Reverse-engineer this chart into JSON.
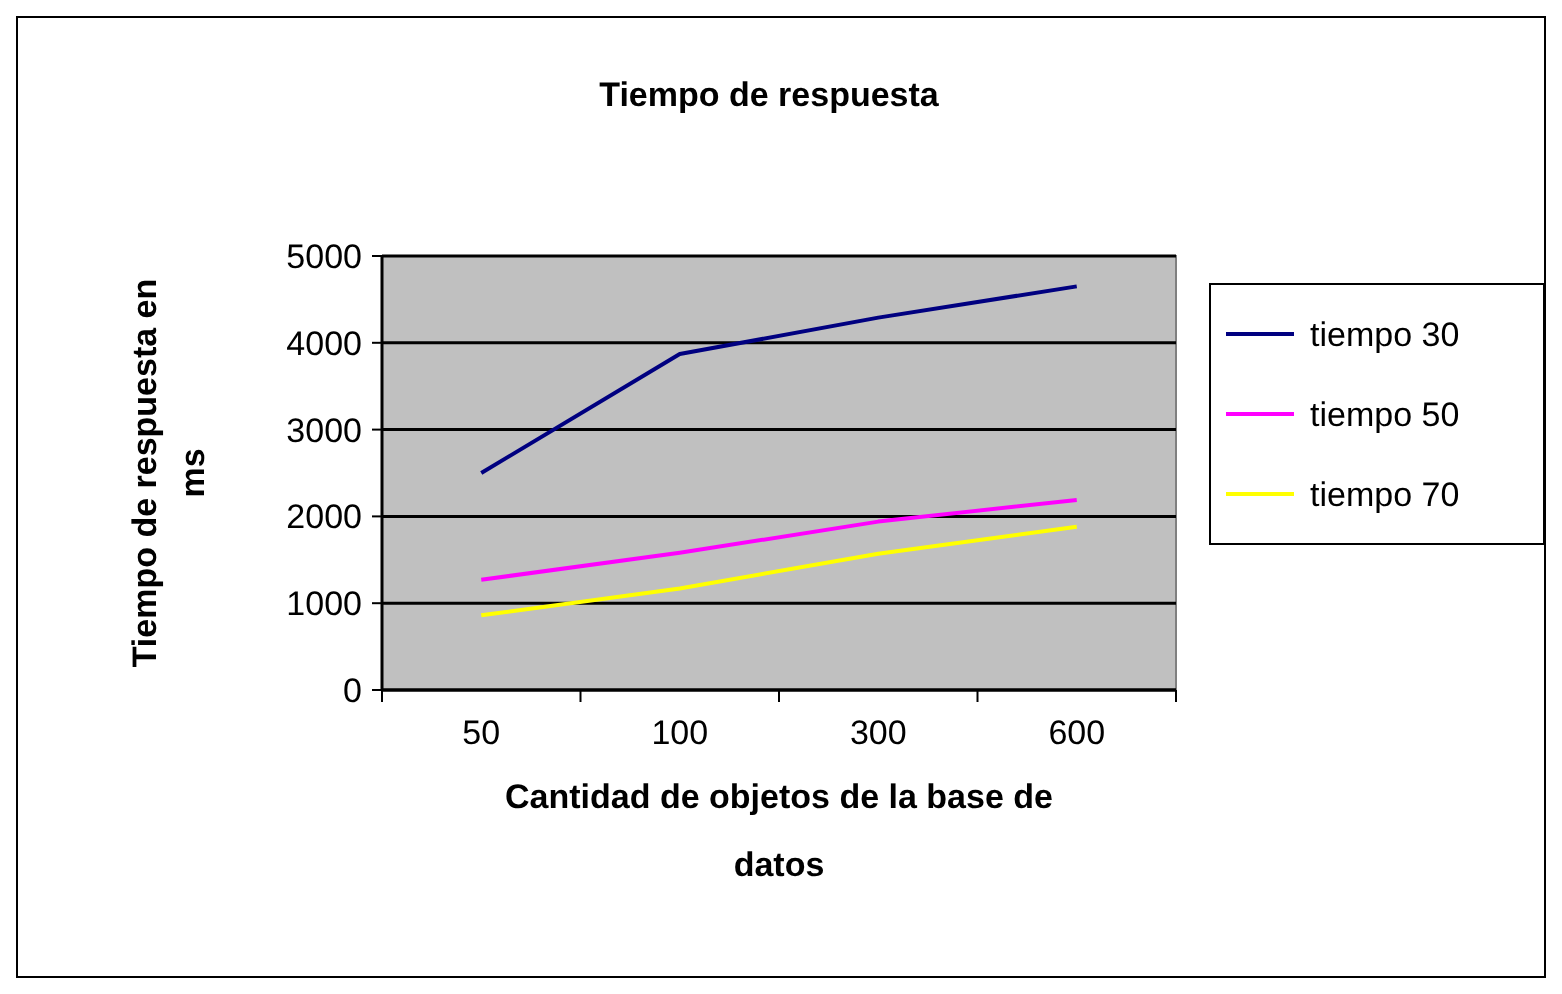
{
  "chart_data": {
    "type": "line",
    "title": "Tiempo de respuesta",
    "xlabel": "Cantidad de objetos de la base de datos",
    "ylabel": "Tiempo de respuesta en ms",
    "categories": [
      "50",
      "100",
      "300",
      "600"
    ],
    "series": [
      {
        "name": "tiempo 30",
        "color": "#000080",
        "values": [
          2500,
          3870,
          4290,
          4650
        ]
      },
      {
        "name": "tiempo 50",
        "color": "#ff00ff",
        "values": [
          1270,
          1580,
          1940,
          2190
        ]
      },
      {
        "name": "tiempo 70",
        "color": "#ffff00",
        "values": [
          860,
          1170,
          1570,
          1880
        ]
      }
    ],
    "ylim": [
      0,
      5000
    ],
    "yticks": [
      0,
      1000,
      2000,
      3000,
      4000,
      5000
    ],
    "grid": "y",
    "legend": "right",
    "marker": "none"
  }
}
